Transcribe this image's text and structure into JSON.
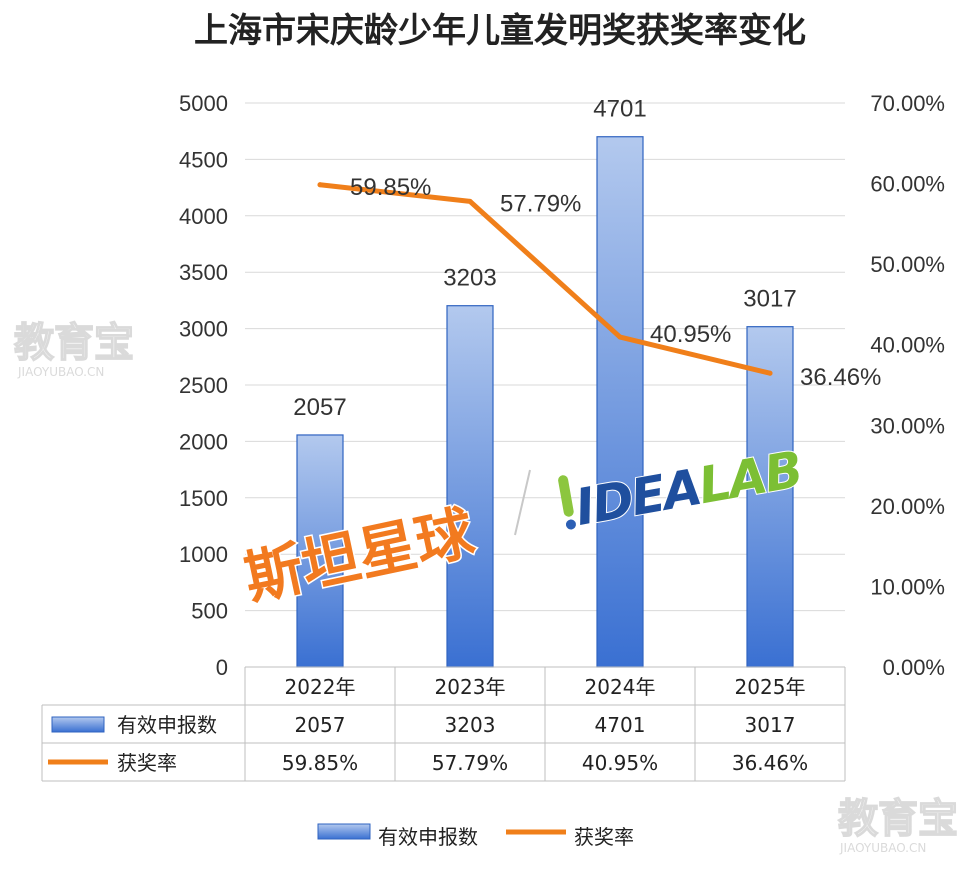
{
  "chart_data": {
    "type": "bar+line",
    "title": "上海市宋庆龄少年儿童发明奖获奖率变化",
    "categories": [
      "2022年",
      "2023年",
      "2024年",
      "2025年"
    ],
    "series": [
      {
        "name": "有效申报数",
        "type": "bar",
        "axis": "left",
        "values": [
          2057,
          3203,
          4701,
          3017
        ],
        "labels": [
          "2057",
          "3203",
          "4701",
          "3017"
        ]
      },
      {
        "name": "获奖率",
        "type": "line",
        "axis": "right",
        "values": [
          59.85,
          57.79,
          40.95,
          36.46
        ],
        "labels": [
          "59.85%",
          "57.79%",
          "40.95%",
          "36.46%"
        ]
      }
    ],
    "left_axis": {
      "ylim": [
        0,
        5000
      ],
      "ticks": [
        "0",
        "500",
        "1000",
        "1500",
        "2000",
        "2500",
        "3000",
        "3500",
        "4000",
        "4500",
        "5000"
      ]
    },
    "right_axis": {
      "ylim": [
        0,
        70
      ],
      "ticks": [
        "0.00%",
        "10.00%",
        "20.00%",
        "30.00%",
        "40.00%",
        "50.00%",
        "60.00%",
        "70.00%"
      ]
    },
    "grid": true,
    "data_table": true,
    "legend": "bottom",
    "colors": {
      "bar_top": "#a9c3ec",
      "bar_bottom": "#3b73d4",
      "bar_stroke": "#2f63c0",
      "line": "#f07f1a",
      "grid": "#d9d9d9"
    }
  },
  "watermarks": {
    "jiaoyubao_cn": "教育宝",
    "jiaoyubao_en": "JIAOYUBAO.CN",
    "stan": "斯坦星球",
    "idealab": "IDEALAB"
  }
}
